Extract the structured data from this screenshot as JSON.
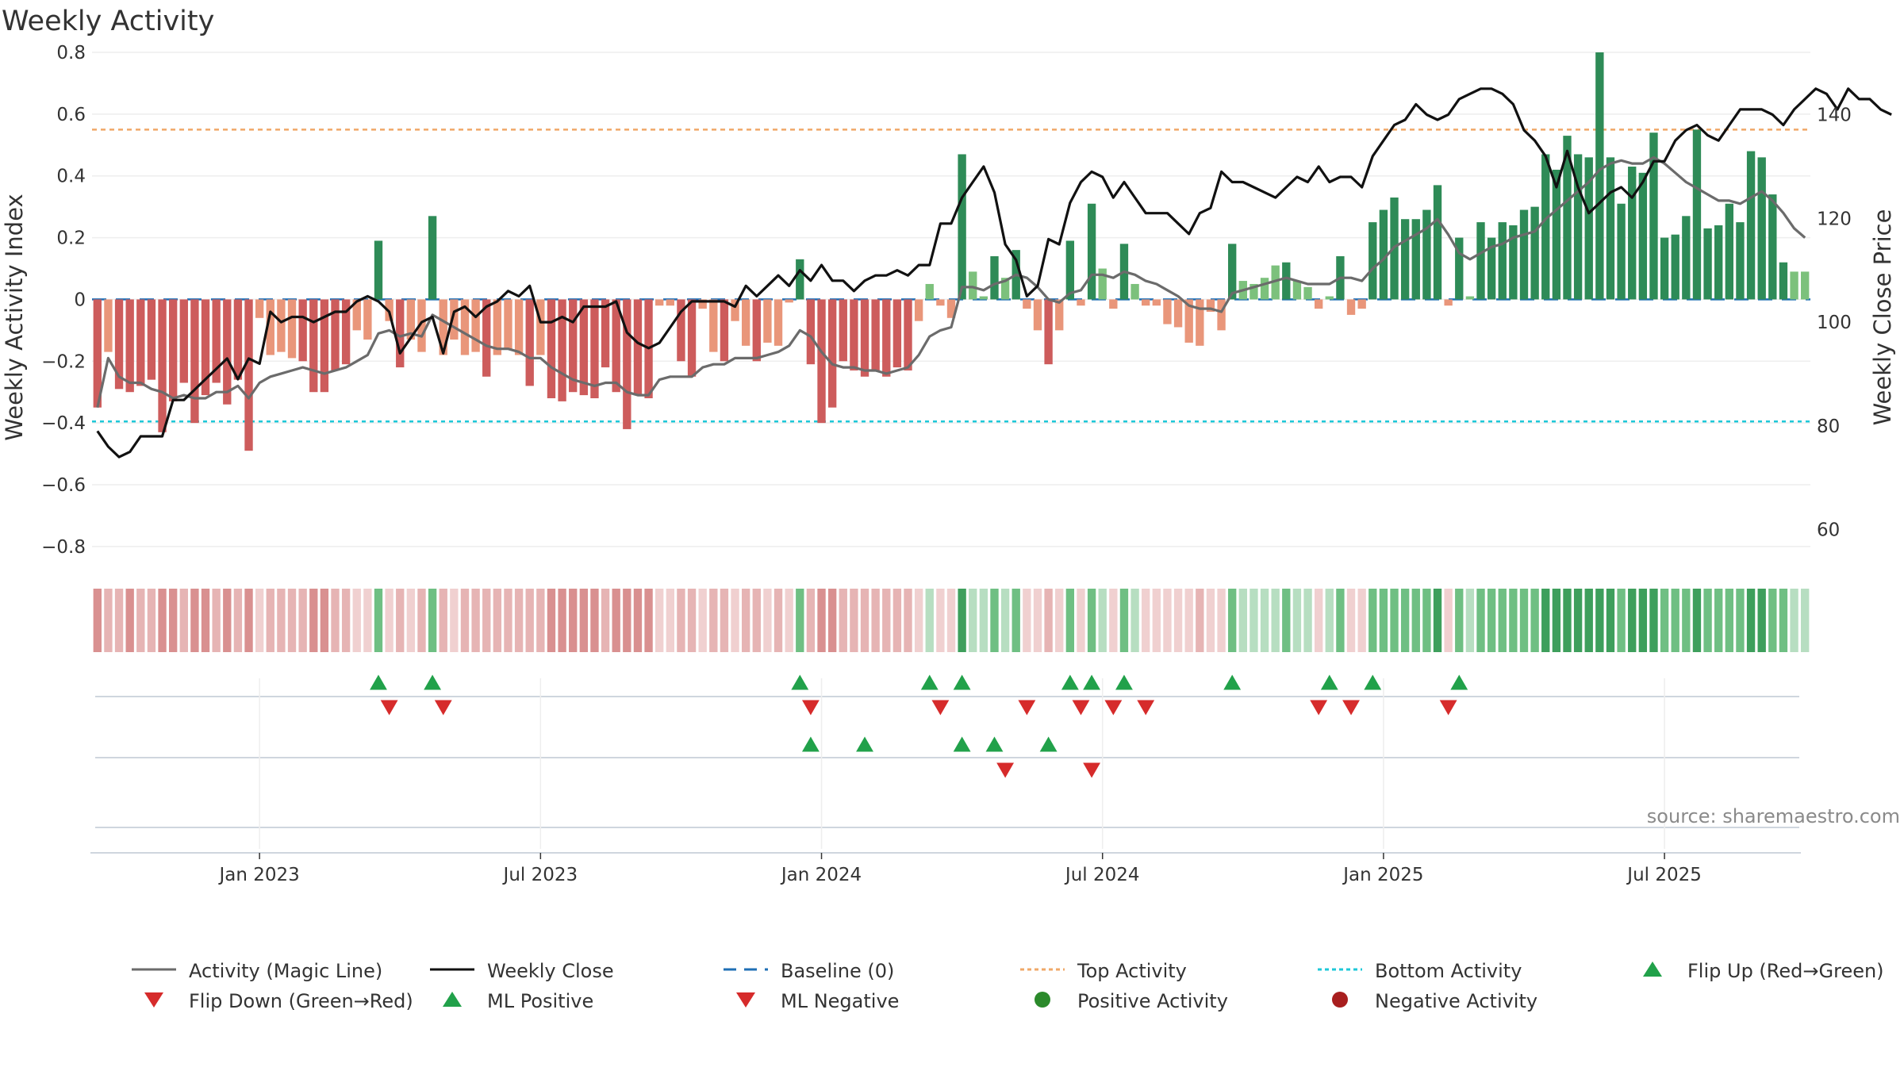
{
  "title": "Weekly Activity",
  "source_text": "source: sharemaestro.com",
  "chart_data": {
    "type": "bar",
    "title": "Weekly Activity",
    "ylabel_left": "Weekly Activity Index",
    "ylabel_right": "Weekly Close Price",
    "ylim_left": [
      -0.88,
      0.8
    ],
    "ylim_right": [
      52,
      152
    ],
    "left_ticks": [
      {
        "value": 0.8,
        "label": "0.8"
      },
      {
        "value": 0.6,
        "label": "0.6"
      },
      {
        "value": 0.4,
        "label": "0.4"
      },
      {
        "value": 0.2,
        "label": "0.2"
      },
      {
        "value": 0,
        "label": "0"
      },
      {
        "value": -0.2,
        "label": "−0.2"
      },
      {
        "value": -0.4,
        "label": "−0.4"
      },
      {
        "value": -0.6,
        "label": "−0.6"
      },
      {
        "value": -0.8,
        "label": "−0.8"
      }
    ],
    "right_ticks": [
      {
        "value": 140,
        "label": "140"
      },
      {
        "value": 120,
        "label": "120"
      },
      {
        "value": 100,
        "label": "100"
      },
      {
        "value": 80,
        "label": "80"
      },
      {
        "value": 60,
        "label": "60"
      }
    ],
    "date_ticks": [
      {
        "label": "Jan 2023",
        "week": 15
      },
      {
        "label": "Jul 2023",
        "week": 41
      },
      {
        "label": "Jan 2024",
        "week": 67
      },
      {
        "label": "Jul 2024",
        "week": 93
      },
      {
        "label": "Jan 2025",
        "week": 119
      },
      {
        "label": "Jul 2025",
        "week": 145
      }
    ],
    "top_activity": 0.55,
    "bottom_activity": -0.395,
    "baseline": 0,
    "activity": [
      -0.35,
      -0.17,
      -0.29,
      -0.3,
      -0.28,
      -0.26,
      -0.43,
      -0.33,
      -0.27,
      -0.4,
      -0.31,
      -0.27,
      -0.34,
      -0.26,
      -0.49,
      -0.06,
      -0.18,
      -0.17,
      -0.19,
      -0.2,
      -0.3,
      -0.3,
      -0.23,
      -0.21,
      -0.1,
      -0.13,
      0.19,
      -0.07,
      -0.22,
      -0.13,
      -0.17,
      0.27,
      -0.18,
      -0.13,
      -0.18,
      -0.17,
      -0.25,
      -0.18,
      -0.16,
      -0.18,
      -0.28,
      -0.18,
      -0.32,
      -0.33,
      -0.3,
      -0.31,
      -0.32,
      -0.22,
      -0.3,
      -0.42,
      -0.31,
      -0.32,
      -0.02,
      -0.02,
      -0.2,
      -0.25,
      -0.03,
      -0.17,
      -0.2,
      -0.07,
      -0.15,
      -0.2,
      -0.14,
      -0.15,
      -0.01,
      0.13,
      -0.21,
      -0.4,
      -0.35,
      -0.2,
      -0.23,
      -0.25,
      -0.23,
      -0.25,
      -0.22,
      -0.23,
      -0.07,
      0.05,
      -0.02,
      -0.06,
      0.47,
      0.09,
      0.01,
      0.14,
      0.07,
      0.16,
      -0.03,
      -0.1,
      -0.21,
      -0.1,
      0.19,
      -0.02,
      0.31,
      0.1,
      -0.03,
      0.18,
      0.05,
      -0.02,
      -0.02,
      -0.08,
      -0.09,
      -0.14,
      -0.15,
      -0.04,
      -0.1,
      0.18,
      0.06,
      0.05,
      0.07,
      0.11,
      0.12,
      0.06,
      0.04,
      -0.03,
      0.01,
      0.14,
      -0.05,
      -0.03,
      0.25,
      0.29,
      0.33,
      0.26,
      0.26,
      0.29,
      0.37,
      -0.02,
      0.2,
      0.01,
      0.25,
      0.2,
      0.25,
      0.24,
      0.29,
      0.3,
      0.47,
      0.42,
      0.53,
      0.47,
      0.46,
      0.8,
      0.46,
      0.31,
      0.43,
      0.41,
      0.54,
      0.2,
      0.21,
      0.27,
      0.55,
      0.23,
      0.24,
      0.31,
      0.25,
      0.48,
      0.46,
      0.34,
      0.12,
      0.09,
      0.09
    ],
    "magic_line": [
      -0.35,
      -0.19,
      -0.25,
      -0.27,
      -0.27,
      -0.29,
      -0.3,
      -0.32,
      -0.31,
      -0.32,
      -0.32,
      -0.3,
      -0.3,
      -0.28,
      -0.32,
      -0.27,
      -0.25,
      -0.24,
      -0.23,
      -0.22,
      -0.23,
      -0.24,
      -0.23,
      -0.22,
      -0.2,
      -0.18,
      -0.11,
      -0.1,
      -0.12,
      -0.11,
      -0.12,
      -0.05,
      -0.07,
      -0.09,
      -0.11,
      -0.13,
      -0.15,
      -0.16,
      -0.16,
      -0.17,
      -0.19,
      -0.19,
      -0.22,
      -0.24,
      -0.26,
      -0.27,
      -0.28,
      -0.27,
      -0.27,
      -0.3,
      -0.31,
      -0.31,
      -0.26,
      -0.25,
      -0.25,
      -0.25,
      -0.22,
      -0.21,
      -0.21,
      -0.19,
      -0.19,
      -0.19,
      -0.18,
      -0.17,
      -0.15,
      -0.1,
      -0.12,
      -0.17,
      -0.21,
      -0.22,
      -0.22,
      -0.23,
      -0.23,
      -0.24,
      -0.23,
      -0.22,
      -0.18,
      -0.12,
      -0.1,
      -0.09,
      0.04,
      0.04,
      0.03,
      0.05,
      0.06,
      0.08,
      0.07,
      0.04,
      0.0,
      -0.01,
      0.02,
      0.03,
      0.08,
      0.08,
      0.07,
      0.09,
      0.08,
      0.06,
      0.05,
      0.03,
      0.01,
      -0.02,
      -0.03,
      -0.03,
      -0.04,
      0.02,
      0.03,
      0.04,
      0.05,
      0.06,
      0.07,
      0.06,
      0.05,
      0.05,
      0.05,
      0.07,
      0.07,
      0.06,
      0.1,
      0.13,
      0.17,
      0.19,
      0.21,
      0.23,
      0.26,
      0.21,
      0.15,
      0.13,
      0.15,
      0.17,
      0.18,
      0.2,
      0.21,
      0.22,
      0.26,
      0.29,
      0.32,
      0.35,
      0.38,
      0.42,
      0.44,
      0.45,
      0.44,
      0.44,
      0.46,
      0.44,
      0.41,
      0.38,
      0.36,
      0.34,
      0.32,
      0.32,
      0.31,
      0.33,
      0.35,
      0.32,
      0.28,
      0.23,
      0.2
    ],
    "weekly_close": [
      79,
      76,
      74,
      75,
      78,
      78,
      78,
      85,
      85,
      87,
      89,
      91,
      93,
      89,
      93,
      92,
      102,
      100,
      101,
      101,
      100,
      101,
      102,
      102,
      104,
      105,
      104,
      102,
      94,
      97,
      100,
      101,
      94,
      102,
      103,
      101,
      103,
      104,
      106,
      105,
      107,
      100,
      100,
      101,
      100,
      103,
      103,
      103,
      104,
      98,
      96,
      95,
      96,
      99,
      102,
      104,
      104,
      104,
      104,
      103,
      107,
      105,
      107,
      109,
      107,
      110,
      108,
      111,
      108,
      108,
      106,
      108,
      109,
      109,
      110,
      109,
      111,
      111,
      119,
      119,
      124,
      127,
      130,
      125,
      115,
      112,
      105,
      107,
      116,
      115,
      123,
      127,
      129,
      128,
      124,
      127,
      124,
      121,
      121,
      121,
      119,
      117,
      121,
      122,
      129,
      127,
      127,
      126,
      125,
      124,
      126,
      128,
      127,
      130,
      127,
      128,
      128,
      126,
      132,
      135,
      138,
      139,
      142,
      140,
      139,
      140,
      143,
      144,
      145,
      145,
      144,
      142,
      137,
      135,
      132,
      126,
      133,
      126,
      121,
      123,
      125,
      126,
      124,
      127,
      131,
      131,
      135,
      137,
      138,
      136,
      135,
      138,
      141,
      141,
      141,
      140,
      138,
      141,
      143,
      145,
      144,
      141,
      145,
      143,
      143,
      141,
      140
    ],
    "ml_positive_weeks": [
      66,
      71,
      80,
      83,
      88
    ],
    "ml_negative_weeks": [
      84,
      92
    ]
  },
  "legend": [
    {
      "key": "magic_line",
      "label": "Activity (Magic Line)",
      "color": "#6b6b6b"
    },
    {
      "key": "weekly_close",
      "label": "Weekly Close",
      "color": "#111111"
    },
    {
      "key": "baseline",
      "label": "Baseline (0)",
      "color": "#1f6fb5"
    },
    {
      "key": "top_activity",
      "label": "Top Activity",
      "color": "#f0a868"
    },
    {
      "key": "bottom_activity",
      "label": "Bottom Activity",
      "color": "#1ec8d8"
    },
    {
      "key": "flip_up",
      "label": "Flip Up (Red→Green)",
      "color": "#21a14a"
    },
    {
      "key": "flip_down",
      "label": "Flip Down (Green→Red)",
      "color": "#d62b2b"
    },
    {
      "key": "ml_positive",
      "label": "ML Positive",
      "color": "#21a14a"
    },
    {
      "key": "ml_negative",
      "label": "ML Negative",
      "color": "#d62b2b"
    },
    {
      "key": "positive_activity",
      "label": "Positive Activity",
      "color": "#2b8a2b"
    },
    {
      "key": "negative_activity",
      "label": "Negative Activity",
      "color": "#a81e1e"
    }
  ],
  "colors": {
    "pos_strong": "#2e8b57",
    "pos_light": "#7cc17c",
    "neg_strong": "#cd5c5c",
    "neg_light": "#e9967a",
    "grid": "#eeeeee"
  }
}
